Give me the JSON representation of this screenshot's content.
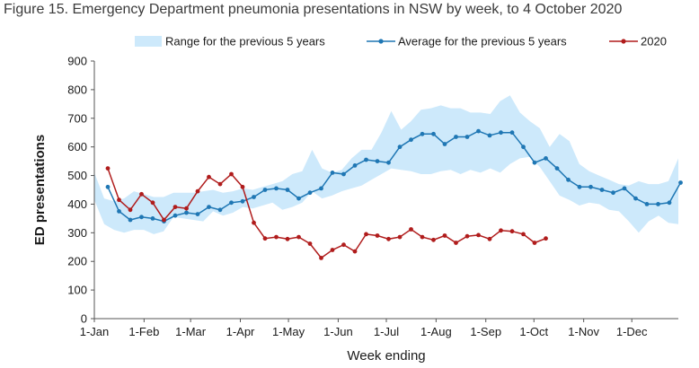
{
  "title": "Figure 15. Emergency Department pneumonia presentations in NSW by week, to 4 October 2020",
  "chart_data": {
    "type": "line",
    "xlabel": "Week ending",
    "ylabel": "ED presentations",
    "ylim": [
      0,
      900
    ],
    "yticks": [
      0,
      100,
      200,
      300,
      400,
      500,
      600,
      700,
      800,
      900
    ],
    "x_range_days": [
      1,
      365
    ],
    "xticks": [
      {
        "label": "1-Jan",
        "day": 1
      },
      {
        "label": "1-Feb",
        "day": 32
      },
      {
        "label": "1-Mar",
        "day": 61
      },
      {
        "label": "1-Apr",
        "day": 92
      },
      {
        "label": "1-May",
        "day": 122
      },
      {
        "label": "1-Jun",
        "day": 153
      },
      {
        "label": "1-Jul",
        "day": 183
      },
      {
        "label": "1-Aug",
        "day": 214
      },
      {
        "label": "1-Sep",
        "day": 245
      },
      {
        "label": "1-Oct",
        "day": 275
      },
      {
        "label": "1-Nov",
        "day": 306
      },
      {
        "label": "1-Dec",
        "day": 336
      }
    ],
    "grid": false,
    "legend_position": "top",
    "colors": {
      "range_fill": "#cde9fb",
      "average": "#1f77b4",
      "year2020": "#b01c1c",
      "axis": "#555555"
    },
    "range": {
      "name": "Range for the previous 5 years",
      "lower": [
        415,
        330,
        310,
        300,
        310,
        310,
        295,
        305,
        355,
        350,
        345,
        340,
        375,
        360,
        370,
        390,
        385,
        395,
        405,
        380,
        390,
        405,
        445,
        420,
        430,
        445,
        455,
        465,
        485,
        505,
        525,
        520,
        515,
        505,
        505,
        515,
        520,
        505,
        520,
        510,
        525,
        510,
        540,
        560,
        565,
        530,
        480,
        430,
        415,
        395,
        405,
        400,
        380,
        375,
        340,
        300,
        340,
        360,
        335,
        330
      ],
      "upper": [
        510,
        420,
        410,
        420,
        445,
        435,
        425,
        425,
        440,
        440,
        440,
        445,
        450,
        440,
        445,
        455,
        450,
        460,
        470,
        480,
        505,
        515,
        590,
        525,
        510,
        520,
        560,
        590,
        590,
        650,
        725,
        660,
        690,
        730,
        735,
        745,
        735,
        735,
        720,
        720,
        715,
        760,
        780,
        720,
        690,
        665,
        600,
        645,
        620,
        540,
        515,
        500,
        485,
        470,
        465,
        480,
        470,
        470,
        480,
        560
      ]
    },
    "series": [
      {
        "name": "Average for the previous 5 years",
        "values": [
          460,
          375,
          345,
          355,
          350,
          340,
          360,
          370,
          365,
          390,
          380,
          405,
          410,
          425,
          450,
          455,
          450,
          420,
          440,
          455,
          510,
          505,
          535,
          555,
          550,
          545,
          600,
          625,
          645,
          645,
          610,
          635,
          635,
          655,
          640,
          650,
          650,
          600,
          545,
          560,
          525,
          485,
          460,
          460,
          450,
          440,
          455,
          420,
          400,
          400,
          405,
          475
        ]
      },
      {
        "name": "2020",
        "values": [
          525,
          415,
          380,
          435,
          405,
          345,
          390,
          385,
          445,
          495,
          470,
          505,
          460,
          335,
          280,
          285,
          278,
          285,
          262,
          212,
          240,
          258,
          235,
          295,
          290,
          278,
          285,
          312,
          285,
          275,
          290,
          265,
          288,
          292,
          278,
          308,
          305,
          295,
          265,
          280
        ]
      }
    ]
  }
}
